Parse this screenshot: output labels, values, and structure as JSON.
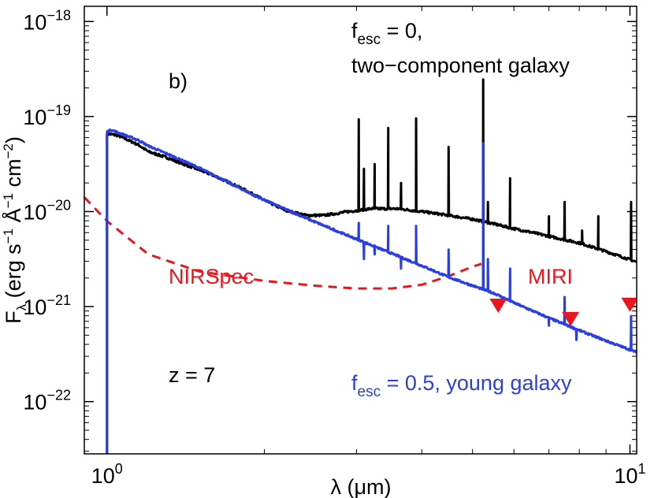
{
  "chart_data": {
    "type": "line",
    "title": "",
    "xlabel": {
      "base": "λ (",
      "mu": "μ",
      "rest": "m)"
    },
    "ylabel": {
      "main": "F",
      "sub": "λ",
      "open": " (erg s",
      "sup1": "−1",
      "angstrom": " Å",
      "sup2": "−1",
      "cm": " cm",
      "sup3": "−2",
      "close": ")"
    },
    "xscale": "log",
    "yscale": "log",
    "xlim": [
      0.905,
      10.3
    ],
    "ylim_log10": [
      -22.55,
      -17.84
    ],
    "x_ticks": [
      {
        "value": 1,
        "base": "10",
        "exp": "0"
      },
      {
        "value": 10,
        "base": "10",
        "exp": "1"
      }
    ],
    "y_ticks": [
      {
        "value": -22,
        "base": "10",
        "exp": "−22"
      },
      {
        "value": -21,
        "base": "10",
        "exp": "−21"
      },
      {
        "value": -20,
        "base": "10",
        "exp": "−20"
      },
      {
        "value": -19,
        "base": "10",
        "exp": "−19"
      },
      {
        "value": -18,
        "base": "10",
        "exp": "−18"
      }
    ],
    "panel_label": "b)",
    "redshift_label": "z = 7",
    "annotations": {
      "black_line1": {
        "f": "f",
        "sub": "esc",
        "rest": " = 0,"
      },
      "black_line2": "two−component galaxy",
      "blue": {
        "f": "f",
        "sub": "esc",
        "rest": " = 0.5, young galaxy"
      },
      "nirspec": "NIRSpec",
      "miri": "MIRI"
    },
    "colors": {
      "two_component": "#000000",
      "young": "#2b3fe0",
      "sensitivity": "#e8171d"
    },
    "series": [
      {
        "name": "f_esc = 0, two-component galaxy",
        "color": "#000000",
        "continuum": [
          [
            1.0,
            -19.18
          ],
          [
            1.05,
            -19.2
          ],
          [
            1.1,
            -19.25
          ],
          [
            1.15,
            -19.3
          ],
          [
            1.2,
            -19.37
          ],
          [
            1.3,
            -19.43
          ],
          [
            1.4,
            -19.5
          ],
          [
            1.5,
            -19.56
          ],
          [
            1.6,
            -19.62
          ],
          [
            1.8,
            -19.75
          ],
          [
            2.0,
            -19.88
          ],
          [
            2.2,
            -19.99
          ],
          [
            2.4,
            -20.04
          ],
          [
            2.6,
            -20.04
          ],
          [
            2.9,
            -20.0
          ],
          [
            3.2,
            -19.97
          ],
          [
            3.6,
            -19.97
          ],
          [
            4.0,
            -20.0
          ],
          [
            4.5,
            -20.04
          ],
          [
            5.0,
            -20.08
          ],
          [
            5.5,
            -20.13
          ],
          [
            6.0,
            -20.18
          ],
          [
            6.5,
            -20.22
          ],
          [
            7.0,
            -20.26
          ],
          [
            8.0,
            -20.33
          ],
          [
            9.0,
            -20.42
          ],
          [
            10.3,
            -20.53
          ]
        ],
        "lines": [
          [
            3.03,
            -19.03
          ],
          [
            3.1,
            -19.55
          ],
          [
            3.25,
            -19.5
          ],
          [
            3.45,
            -19.12
          ],
          [
            3.65,
            -19.7
          ],
          [
            3.9,
            -19.02
          ],
          [
            4.5,
            -19.32
          ],
          [
            5.24,
            -18.61
          ],
          [
            5.35,
            -19.9
          ],
          [
            5.9,
            -19.65
          ],
          [
            7.0,
            -20.05
          ],
          [
            7.5,
            -19.9
          ],
          [
            8.1,
            -20.2
          ],
          [
            8.7,
            -20.05
          ],
          [
            10.05,
            -19.9
          ]
        ]
      },
      {
        "name": "f_esc = 0.5, young galaxy",
        "color": "#2b3fe0",
        "cutoff": {
          "x": 1.0,
          "floor": -22.55
        },
        "continuum": [
          [
            1.0,
            -19.16
          ],
          [
            1.02,
            -19.14
          ],
          [
            1.05,
            -19.17
          ],
          [
            1.1,
            -19.21
          ],
          [
            1.15,
            -19.25
          ],
          [
            1.2,
            -19.31
          ],
          [
            1.3,
            -19.39
          ],
          [
            1.5,
            -19.54
          ],
          [
            1.7,
            -19.69
          ],
          [
            2.0,
            -19.88
          ],
          [
            2.5,
            -20.11
          ],
          [
            3.0,
            -20.29
          ],
          [
            3.5,
            -20.44
          ],
          [
            4.0,
            -20.57
          ],
          [
            4.5,
            -20.69
          ],
          [
            5.0,
            -20.78
          ],
          [
            5.5,
            -20.86
          ],
          [
            6.0,
            -20.96
          ],
          [
            7.0,
            -21.12
          ],
          [
            8.0,
            -21.25
          ],
          [
            9.0,
            -21.36
          ],
          [
            10.3,
            -21.48
          ]
        ],
        "lines": [
          [
            3.03,
            -20.12
          ],
          [
            3.1,
            -20.5
          ],
          [
            3.25,
            -20.45
          ],
          [
            3.45,
            -20.15
          ],
          [
            3.65,
            -20.6
          ],
          [
            3.9,
            -20.15
          ],
          [
            4.5,
            -20.4
          ],
          [
            5.24,
            -19.28
          ],
          [
            5.35,
            -20.5
          ],
          [
            5.9,
            -20.6
          ],
          [
            7.0,
            -21.2
          ],
          [
            7.5,
            -20.9
          ],
          [
            7.9,
            -21.35
          ],
          [
            10.05,
            -21.1
          ]
        ]
      },
      {
        "name": "JWST sensitivity (NIRSpec)",
        "color": "#e8171d",
        "style": "dashed",
        "points": [
          [
            0.905,
            -19.85
          ],
          [
            1.0,
            -20.1
          ],
          [
            1.2,
            -20.45
          ],
          [
            1.5,
            -20.63
          ],
          [
            2.0,
            -20.73
          ],
          [
            2.5,
            -20.78
          ],
          [
            3.0,
            -20.81
          ],
          [
            3.5,
            -20.81
          ],
          [
            4.0,
            -20.77
          ],
          [
            4.5,
            -20.68
          ],
          [
            5.0,
            -20.58
          ],
          [
            5.2,
            -20.55
          ]
        ]
      }
    ],
    "miri_limits": {
      "color": "#e8171d",
      "marker": "down-triangle",
      "points": [
        [
          5.6,
          -20.98
        ],
        [
          7.7,
          -21.12
        ],
        [
          10.0,
          -20.97
        ]
      ]
    }
  }
}
